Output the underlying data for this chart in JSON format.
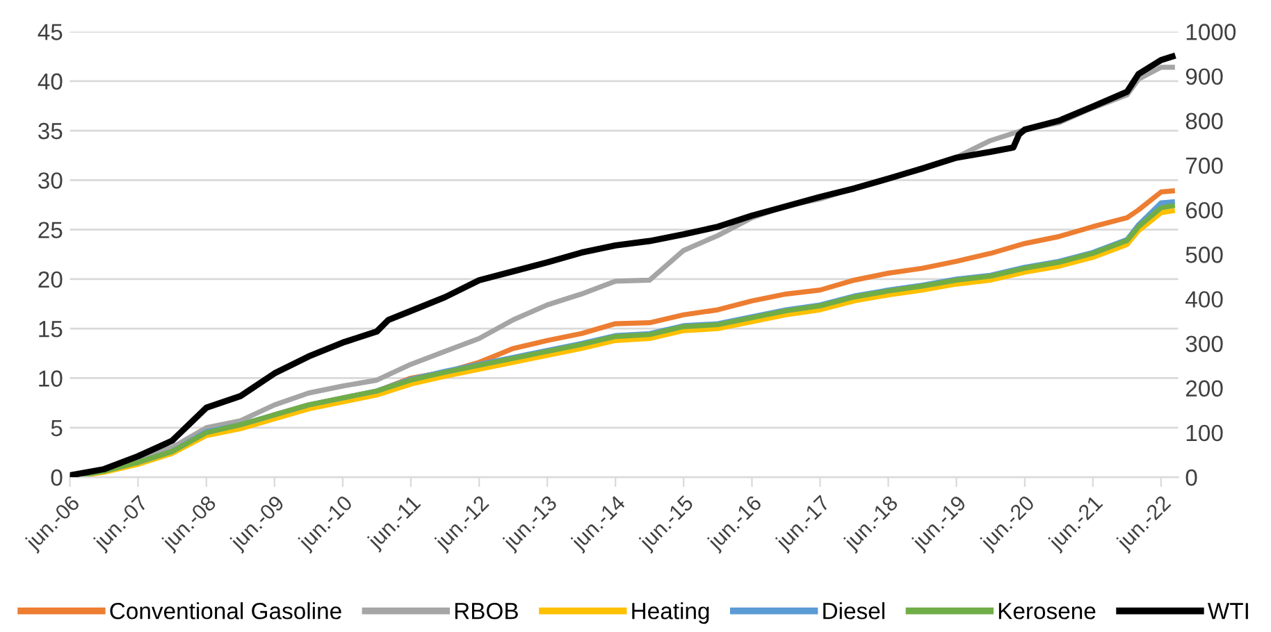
{
  "chart_data": {
    "type": "line",
    "x": [
      "2006-06",
      "2006-12",
      "2007-06",
      "2007-12",
      "2008-06",
      "2008-12",
      "2009-06",
      "2009-12",
      "2010-06",
      "2010-12",
      "2011-06",
      "2011-12",
      "2012-06",
      "2012-12",
      "2013-06",
      "2013-12",
      "2014-06",
      "2014-12",
      "2015-06",
      "2015-12",
      "2016-06",
      "2016-12",
      "2017-06",
      "2017-12",
      "2018-06",
      "2018-12",
      "2019-06",
      "2019-12",
      "2020-06",
      "2020-12",
      "2021-06",
      "2021-12",
      "2022-02",
      "2022-06",
      "2022-08"
    ],
    "series": [
      {
        "name": "Conventional Gasoline",
        "color": "#ed7d31",
        "values": [
          null,
          null,
          null,
          null,
          4.7,
          5.0,
          6.3,
          7.3,
          8.0,
          8.7,
          10.0,
          10.6,
          11.6,
          13.0,
          13.8,
          14.5,
          15.5,
          15.6,
          16.4,
          16.9,
          17.8,
          18.5,
          18.9,
          19.9,
          20.6,
          21.1,
          21.8,
          22.6,
          23.6,
          24.3,
          25.3,
          26.2,
          27.0,
          28.8,
          28.9
        ]
      },
      {
        "name": "RBOB",
        "color": "#a5a5a5",
        "values": [
          0,
          0.6,
          2.0,
          3.0,
          5.0,
          5.7,
          7.3,
          8.5,
          9.2,
          9.8,
          11.4,
          12.7,
          14.0,
          15.9,
          17.4,
          18.5,
          19.8,
          19.9,
          22.9,
          24.4,
          26.2,
          27.4,
          28.1,
          29.2,
          30.2,
          31.1,
          32.3,
          34.0,
          35.1,
          35.8,
          37.3,
          38.6,
          40.2,
          41.4,
          41.4
        ]
      },
      {
        "name": "Heating",
        "color": "#ffc000",
        "values": [
          0,
          0.5,
          1.3,
          2.4,
          4.2,
          4.9,
          5.9,
          6.9,
          7.6,
          8.3,
          9.4,
          10.2,
          10.9,
          11.6,
          12.3,
          13.0,
          13.8,
          14.0,
          14.8,
          15.0,
          15.7,
          16.4,
          16.9,
          17.8,
          18.4,
          18.9,
          19.5,
          19.9,
          20.7,
          21.3,
          22.2,
          23.5,
          24.9,
          26.7,
          26.9
        ]
      },
      {
        "name": "Diesel",
        "color": "#5b9bd5",
        "values": [
          null,
          null,
          1.5,
          2.6,
          4.6,
          5.3,
          6.3,
          7.3,
          8.0,
          8.7,
          9.9,
          10.7,
          11.4,
          12.1,
          12.8,
          13.5,
          14.3,
          14.5,
          15.3,
          15.5,
          16.2,
          16.9,
          17.4,
          18.3,
          18.9,
          19.4,
          20.0,
          20.4,
          21.2,
          21.8,
          22.7,
          24.0,
          25.5,
          27.7,
          27.8
        ]
      },
      {
        "name": "Kerosene",
        "color": "#70ad47",
        "values": [
          0,
          0.6,
          1.5,
          2.6,
          4.5,
          5.3,
          6.3,
          7.3,
          8.0,
          8.7,
          9.8,
          10.6,
          11.3,
          12.0,
          12.7,
          13.4,
          14.2,
          14.4,
          15.2,
          15.4,
          16.1,
          16.8,
          17.3,
          18.2,
          18.8,
          19.3,
          19.9,
          20.3,
          21.1,
          21.7,
          22.6,
          23.9,
          25.3,
          27.2,
          27.4
        ]
      },
      {
        "name": "WTI",
        "color": "#000000",
        "axis": "y2",
        "x": [
          "2006-06",
          "2006-12",
          "2007-06",
          "2007-12",
          "2008-06",
          "2008-12",
          "2009-06",
          "2009-12",
          "2010-06",
          "2010-12",
          "2011-02",
          "2011-06",
          "2011-12",
          "2012-06",
          "2012-12",
          "2013-06",
          "2013-12",
          "2014-06",
          "2014-12",
          "2015-06",
          "2015-12",
          "2016-06",
          "2016-12",
          "2017-06",
          "2017-12",
          "2018-06",
          "2018-12",
          "2019-06",
          "2019-12",
          "2020-04",
          "2020-05",
          "2020-06",
          "2020-12",
          "2021-06",
          "2021-12",
          "2022-02",
          "2022-06",
          "2022-08"
        ],
        "values": [
          4,
          18,
          47,
          82,
          156,
          182,
          233,
          271,
          302,
          327,
          353,
          373,
          404,
          442,
          462,
          482,
          504,
          520,
          530,
          545,
          562,
          587,
          608,
          629,
          648,
          670,
          693,
          717,
          730,
          740,
          769,
          780,
          800,
          832,
          865,
          905,
          936,
          944
        ]
      }
    ],
    "xlim": [
      "2006-06",
      "2022-09"
    ],
    "xticks": [
      {
        "value": "2006-06",
        "label": "jun.-06"
      },
      {
        "value": "2007-06",
        "label": "jun.-07"
      },
      {
        "value": "2008-06",
        "label": "jun.-08"
      },
      {
        "value": "2009-06",
        "label": "jun.-09"
      },
      {
        "value": "2010-06",
        "label": "jun.-10"
      },
      {
        "value": "2011-06",
        "label": "jun.-11"
      },
      {
        "value": "2012-06",
        "label": "jun.-12"
      },
      {
        "value": "2013-06",
        "label": "jun.-13"
      },
      {
        "value": "2014-06",
        "label": "jun.-14"
      },
      {
        "value": "2015-06",
        "label": "jun.-15"
      },
      {
        "value": "2016-06",
        "label": "jun.-16"
      },
      {
        "value": "2017-06",
        "label": "jun.-17"
      },
      {
        "value": "2018-06",
        "label": "jun.-18"
      },
      {
        "value": "2019-06",
        "label": "jun.-19"
      },
      {
        "value": "2020-06",
        "label": "jun.-20"
      },
      {
        "value": "2021-06",
        "label": "jun.-21"
      },
      {
        "value": "2022-06",
        "label": "jun.-22"
      }
    ],
    "ylim": [
      0,
      45
    ],
    "yticks": [
      0,
      5,
      10,
      15,
      20,
      25,
      30,
      35,
      40,
      45
    ],
    "y2lim": [
      0,
      1000
    ],
    "y2ticks": [
      0,
      100,
      200,
      300,
      400,
      500,
      600,
      700,
      800,
      900,
      1000
    ],
    "grid": "y",
    "legend": "bottom",
    "marker": "none",
    "line_style": "solid"
  }
}
